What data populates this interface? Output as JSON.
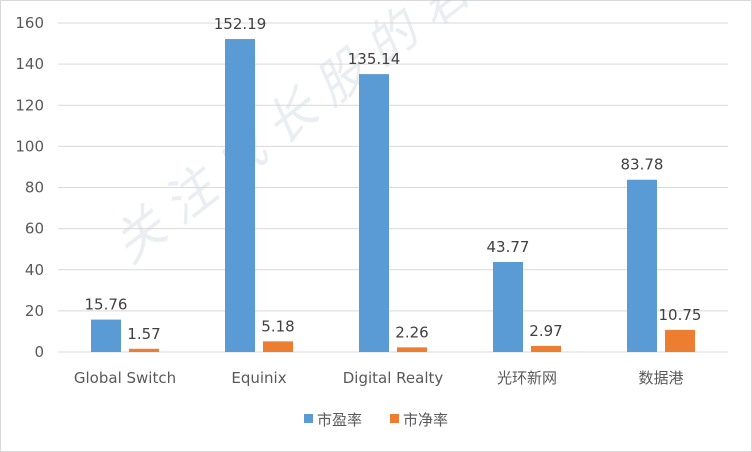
{
  "chart_data": {
    "type": "bar",
    "categories": [
      "Global Switch",
      "Equinix",
      "Digital Realty",
      "光环新网",
      "数据港"
    ],
    "series": [
      {
        "name": "市盈率",
        "values": [
          15.76,
          152.19,
          135.14,
          43.77,
          83.78
        ],
        "color": "#5b9bd5"
      },
      {
        "name": "市净率",
        "values": [
          1.57,
          5.18,
          2.26,
          2.97,
          10.75
        ],
        "color": "#ed7d31"
      }
    ],
    "ylim": [
      0,
      160
    ],
    "yticks": [
      0,
      20,
      40,
      60,
      80,
      100,
      120,
      140,
      160
    ],
    "grid": true,
    "legend": "bottom",
    "data_labels": true
  },
  "watermark": "关注成长股的君临"
}
